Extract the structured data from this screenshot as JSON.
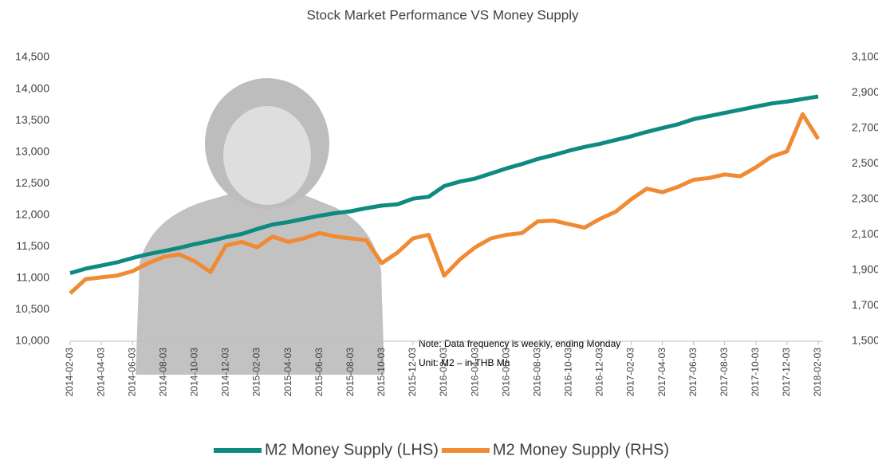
{
  "chart_data": {
    "type": "line",
    "title": "Stock Market Performance VS Money Supply",
    "categories": [
      "2014-02-03",
      null,
      "2014-04-03",
      null,
      "2014-06-03",
      null,
      "2014-08-03",
      null,
      "2014-10-03",
      null,
      "2014-12-03",
      null,
      "2015-02-03",
      null,
      "2015-04-03",
      null,
      "2015-06-03",
      null,
      "2015-08-03",
      null,
      "2015-10-03",
      null,
      "2015-12-03",
      null,
      "2016-02-03",
      null,
      "2016-04-03",
      null,
      "2016-06-03",
      null,
      "2016-08-03",
      null,
      "2016-10-03",
      null,
      "2016-12-03",
      null,
      "2017-02-03",
      null,
      "2017-04-03",
      null,
      "2017-06-03",
      null,
      "2017-08-03",
      null,
      "2017-10-03",
      null,
      "2017-12-03",
      null,
      "2018-02-03"
    ],
    "series": [
      {
        "name": "M2 Money Supply (LHS)",
        "color": "#0e8a80",
        "axis": "y",
        "values": [
          11080,
          11150,
          11200,
          11250,
          11320,
          11380,
          11430,
          11480,
          11540,
          11590,
          11650,
          11700,
          11780,
          11850,
          11890,
          11940,
          11990,
          12030,
          12060,
          12110,
          12150,
          12170,
          12260,
          12290,
          12460,
          12530,
          12580,
          12660,
          12740,
          12810,
          12890,
          12950,
          13020,
          13080,
          13130,
          13190,
          13250,
          13320,
          13380,
          13440,
          13520,
          13570,
          13620,
          13670,
          13720,
          13770,
          13800,
          13840,
          13880
        ]
      },
      {
        "name": "M2 Money Supply (RHS)",
        "color": "#f08a33",
        "axis": "y2",
        "values": [
          1770,
          1850,
          1860,
          1870,
          1895,
          1940,
          1975,
          1990,
          1950,
          1890,
          2040,
          2060,
          2030,
          2090,
          2060,
          2080,
          2110,
          2090,
          2080,
          2070,
          1940,
          2000,
          2080,
          2100,
          1870,
          1960,
          2030,
          2080,
          2100,
          2110,
          2175,
          2180,
          2160,
          2140,
          2190,
          2230,
          2300,
          2360,
          2340,
          2370,
          2410,
          2420,
          2440,
          2430,
          2480,
          2540,
          2570,
          2780,
          2640
        ]
      }
    ],
    "ylim": [
      10000,
      14500
    ],
    "yticks": [
      {
        "value": 10000,
        "label": "10,000"
      },
      {
        "value": 10500,
        "label": "10,500"
      },
      {
        "value": 11000,
        "label": "11,000"
      },
      {
        "value": 11500,
        "label": "11,500"
      },
      {
        "value": 12000,
        "label": "12,000"
      },
      {
        "value": 12500,
        "label": "12,500"
      },
      {
        "value": 13000,
        "label": "13,000"
      },
      {
        "value": 13500,
        "label": "13,500"
      },
      {
        "value": 14000,
        "label": "14,000"
      },
      {
        "value": 14500,
        "label": "14,500"
      }
    ],
    "y2lim": [
      1500,
      3100
    ],
    "y2ticks": [
      {
        "value": 1500,
        "label": "1,500"
      },
      {
        "value": 1700,
        "label": "1,700"
      },
      {
        "value": 1900,
        "label": "1,900"
      },
      {
        "value": 2100,
        "label": "2,100"
      },
      {
        "value": 2300,
        "label": "2,300"
      },
      {
        "value": 2500,
        "label": "2,500"
      },
      {
        "value": 2700,
        "label": "2,700"
      },
      {
        "value": 2900,
        "label": "2,900"
      },
      {
        "value": 3100,
        "label": "3,100"
      }
    ],
    "annotations": [
      "Note: Data frequency is weekly, ending Monday",
      "Unit: M2 – in THB Mn"
    ],
    "legend": "bottom"
  }
}
